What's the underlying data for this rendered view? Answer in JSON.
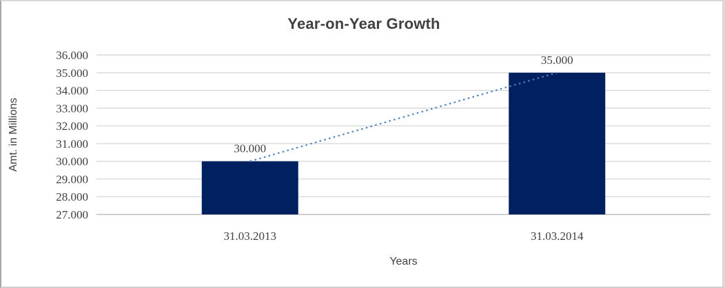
{
  "frame": {
    "background": "#ffffff",
    "border_color": "#d9d9d9"
  },
  "chart_data": {
    "type": "bar",
    "title": "Year-on-Year Growth",
    "xlabel": "Years",
    "ylabel": "Amt. in Millions",
    "categories": [
      "31.03.2013",
      "31.03.2014"
    ],
    "series": [
      {
        "name": "Amt. in Millions",
        "values": [
          30000,
          35000
        ]
      }
    ],
    "data_labels": [
      "30.000",
      "35.000"
    ],
    "y_ticks": [
      {
        "value": 36000,
        "label": "36.000"
      },
      {
        "value": 35000,
        "label": "35.000"
      },
      {
        "value": 34000,
        "label": "34.000"
      },
      {
        "value": 33000,
        "label": "33.000"
      },
      {
        "value": 32000,
        "label": "32.000"
      },
      {
        "value": 31000,
        "label": "31.000"
      },
      {
        "value": 30000,
        "label": "30.000"
      },
      {
        "value": 29000,
        "label": "29.000"
      },
      {
        "value": 28000,
        "label": "28.000"
      },
      {
        "value": 27000,
        "label": "27.000"
      }
    ],
    "ylim": [
      27000,
      36000
    ],
    "grid": true,
    "legend": "none",
    "trendline": {
      "type": "linear",
      "style": "dotted",
      "from_value": 30000,
      "to_value": 35000
    },
    "colors": {
      "bar": "#002060",
      "trendline": "#4f81bd",
      "gridline": "#d9d9d9",
      "axis_line": "#c3c3c3",
      "text": "#404040"
    }
  }
}
